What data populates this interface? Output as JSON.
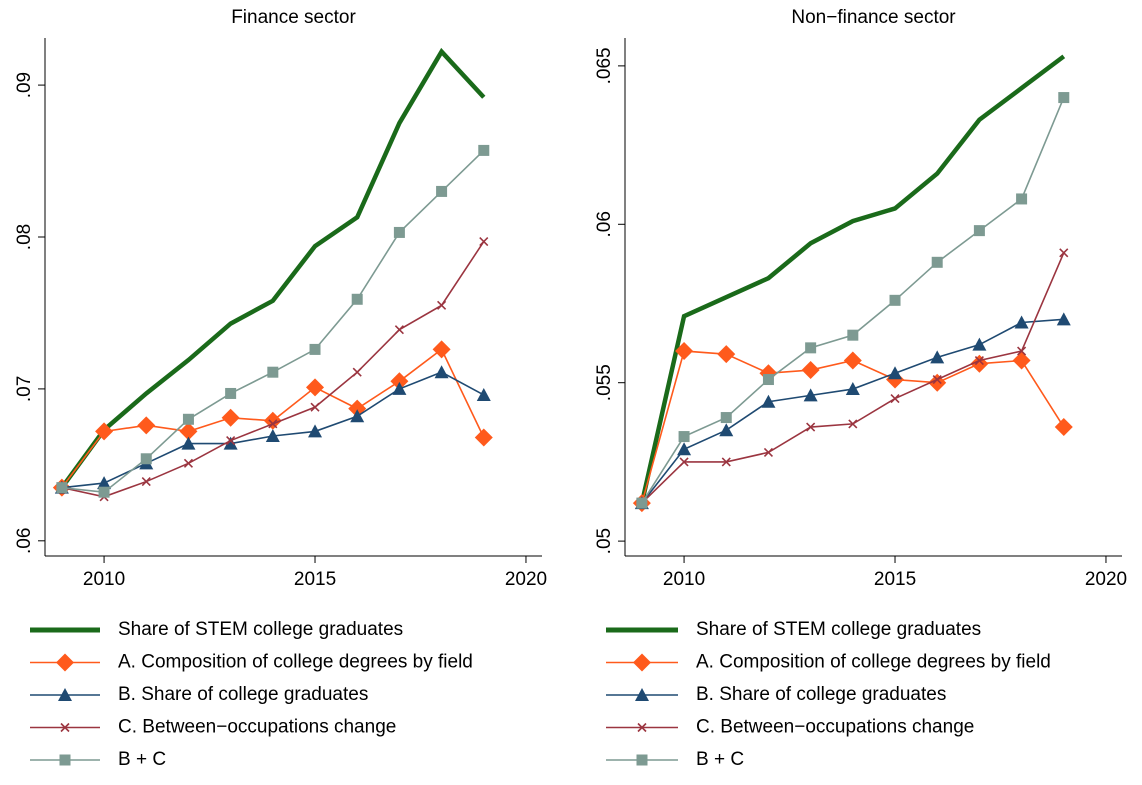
{
  "chart_data": [
    {
      "type": "line",
      "title": "Finance sector",
      "x": [
        2009,
        2010,
        2011,
        2012,
        2013,
        2014,
        2015,
        2016,
        2017,
        2018,
        2019
      ],
      "xlim": [
        2008.6,
        2020.38
      ],
      "xticks": [
        2010,
        2015,
        2020
      ],
      "ylim": [
        0.059,
        0.0931
      ],
      "yticks": [
        {
          "value": 0.06,
          "label": ".06"
        },
        {
          "value": 0.07,
          "label": ".07"
        },
        {
          "value": 0.08,
          "label": ".08"
        },
        {
          "value": 0.09,
          "label": ".09"
        }
      ],
      "series": [
        {
          "name": "Share of STEM college graduates",
          "color": "#1a6a1a",
          "marker": "none",
          "values": [
            0.0635,
            0.0673,
            0.0697,
            0.0719,
            0.0743,
            0.0758,
            0.0794,
            0.0813,
            0.0875,
            0.0922,
            0.0892
          ]
        },
        {
          "name": "A. Composition of college degrees by field",
          "color": "#ff5a1c",
          "marker": "diamond",
          "values": [
            0.0635,
            0.0672,
            0.0676,
            0.0672,
            0.0681,
            0.0679,
            0.0701,
            0.0687,
            0.0705,
            0.0726,
            0.0668
          ]
        },
        {
          "name": "B. Share of college graduates",
          "color": "#1f4a72",
          "marker": "triangle",
          "values": [
            0.0635,
            0.0638,
            0.0651,
            0.0664,
            0.0664,
            0.0669,
            0.0672,
            0.0682,
            0.07,
            0.0711,
            0.0696
          ]
        },
        {
          "name": "C. Between−occupations change",
          "color": "#9b3540",
          "marker": "x",
          "values": [
            0.0635,
            0.0629,
            0.0639,
            0.0651,
            0.0666,
            0.0677,
            0.0688,
            0.0711,
            0.0739,
            0.0755,
            0.0797
          ]
        },
        {
          "name": "B + C",
          "color": "#7d9a92",
          "marker": "square",
          "values": [
            0.0635,
            0.0632,
            0.0654,
            0.068,
            0.0697,
            0.0711,
            0.0726,
            0.0759,
            0.0803,
            0.083,
            0.0857
          ]
        }
      ]
    },
    {
      "type": "line",
      "title": "Non−finance sector",
      "x": [
        2009,
        2010,
        2011,
        2012,
        2013,
        2014,
        2015,
        2016,
        2017,
        2018,
        2019
      ],
      "xlim": [
        2008.6,
        2020.38
      ],
      "xticks": [
        2010,
        2015,
        2020
      ],
      "ylim": [
        0.04953,
        0.06588
      ],
      "yticks": [
        {
          "value": 0.05,
          "label": ".05"
        },
        {
          "value": 0.055,
          "label": ".055"
        },
        {
          "value": 0.06,
          "label": ".06"
        },
        {
          "value": 0.065,
          "label": ".065"
        }
      ],
      "series": [
        {
          "name": "Share of STEM college graduates",
          "color": "#1a6a1a",
          "marker": "none",
          "values": [
            0.0512,
            0.0571,
            0.0577,
            0.0583,
            0.0594,
            0.0601,
            0.0605,
            0.0616,
            0.0633,
            0.0643,
            0.0653
          ]
        },
        {
          "name": "A. Composition of college degrees by field",
          "color": "#ff5a1c",
          "marker": "diamond",
          "values": [
            0.0512,
            0.056,
            0.0559,
            0.0553,
            0.0554,
            0.0557,
            0.0551,
            0.055,
            0.0556,
            0.0557,
            0.0536
          ]
        },
        {
          "name": "B. Share of college graduates",
          "color": "#1f4a72",
          "marker": "triangle",
          "values": [
            0.0512,
            0.0529,
            0.0535,
            0.0544,
            0.0546,
            0.0548,
            0.0553,
            0.0558,
            0.0562,
            0.0569,
            0.057
          ]
        },
        {
          "name": "C. Between−occupations change",
          "color": "#9b3540",
          "marker": "x",
          "values": [
            0.0512,
            0.0525,
            0.0525,
            0.0528,
            0.0536,
            0.0537,
            0.0545,
            0.0551,
            0.0557,
            0.056,
            0.0591
          ]
        },
        {
          "name": "B + C",
          "color": "#7d9a92",
          "marker": "square",
          "values": [
            0.0512,
            0.0533,
            0.0539,
            0.0551,
            0.0561,
            0.0565,
            0.0576,
            0.0588,
            0.0598,
            0.0608,
            0.064
          ]
        }
      ]
    }
  ]
}
